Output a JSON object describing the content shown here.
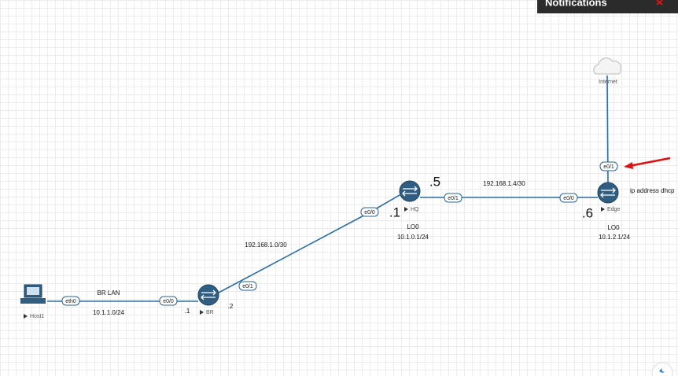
{
  "header": {
    "title": "Notifications"
  },
  "nodes": [
    {
      "label": "Host1"
    },
    {
      "label": "BR"
    },
    {
      "label": "HQ"
    },
    {
      "label": "Edge"
    },
    {
      "label": "Internet"
    }
  ],
  "links": [
    {
      "from_interface": "eth0",
      "to_interface": "e0/0"
    },
    {
      "from_interface": "e0/1",
      "to_interface": "e0/0"
    },
    {
      "from_interface": "e0/1",
      "to_interface": "e0/0"
    },
    {
      "from_interface": "e0/1"
    }
  ],
  "annotations": [
    "BR LAN",
    "10.1.1.0/24",
    ".1",
    ".2",
    "192.168.1.0/30",
    ".1",
    ".5",
    "LO0",
    "10.1.0.1/24",
    "192.168.1.4/30",
    ".6",
    "LO0",
    "10.1.2.1/24",
    "ip address dhcp"
  ]
}
